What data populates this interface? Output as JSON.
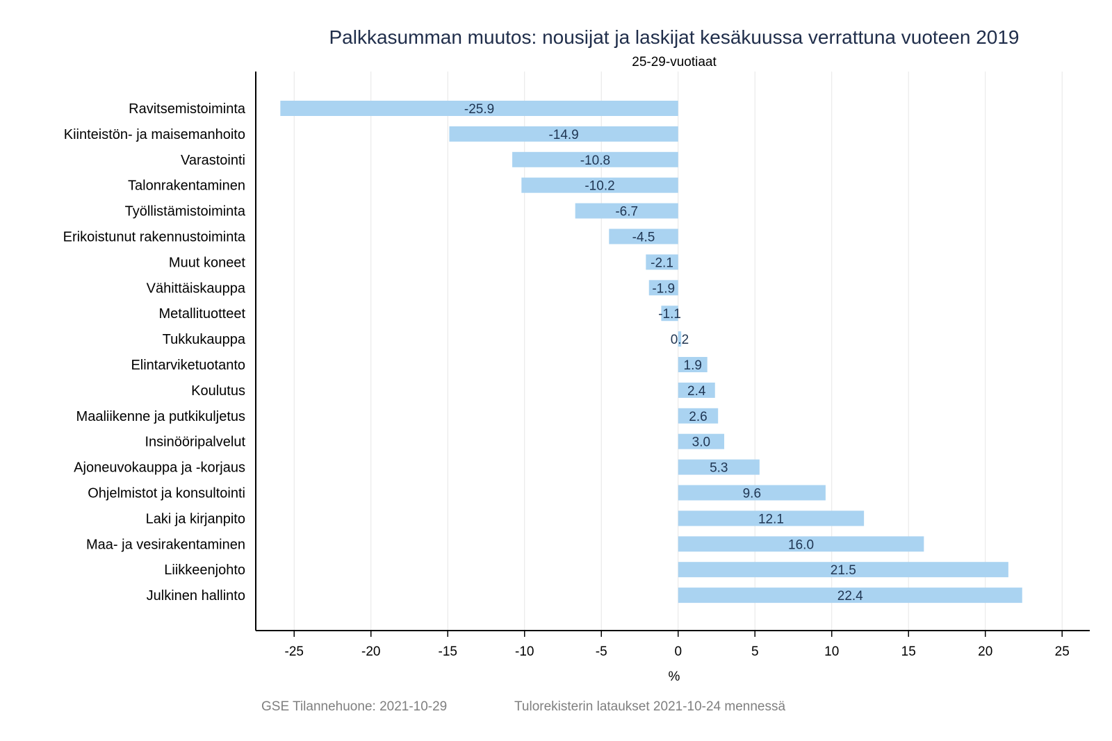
{
  "chart_data": {
    "type": "bar",
    "orientation": "horizontal",
    "title": "Palkkasumman muutos: nousijat ja laskijat kesäkuussa verrattuna vuoteen 2019",
    "subtitle": "25-29-vuotiaat",
    "xlabel": "%",
    "ylabel": "",
    "xlim": [
      -27.5,
      26.8
    ],
    "xticks": [
      "-25",
      "-20",
      "-15",
      "-10",
      "-5",
      "0",
      "5",
      "10",
      "15",
      "20",
      "25"
    ],
    "xtick_values": [
      -25,
      -20,
      -15,
      -10,
      -5,
      0,
      5,
      10,
      15,
      20,
      25
    ],
    "grid": true,
    "bar_color": "#aad3f1",
    "categories": [
      "Ravitsemistoiminta",
      "Kiinteistön- ja maisemanhoito",
      "Varastointi",
      "Talonrakentaminen",
      "Työllistämistoiminta",
      "Erikoistunut rakennustoiminta",
      "Muut koneet",
      "Vähittäiskauppa",
      "Metallituotteet",
      "Tukkukauppa",
      "Elintarviketuotanto",
      "Koulutus",
      "Maaliikenne ja putkikuljetus",
      "Insinööripalvelut",
      "Ajoneuvokauppa ja -korjaus",
      "Ohjelmistot ja konsultointi",
      "Laki ja kirjanpito",
      "Maa- ja vesirakentaminen",
      "Liikkeenjohto",
      "Julkinen hallinto"
    ],
    "values": [
      -25.9,
      -14.9,
      -10.8,
      -10.2,
      -6.7,
      -4.5,
      -2.1,
      -1.9,
      -1.1,
      0.2,
      1.9,
      2.4,
      2.6,
      3.0,
      5.3,
      9.6,
      12.1,
      16.0,
      21.5,
      22.4
    ],
    "value_labels": [
      "-25.9",
      "-14.9",
      "-10.8",
      "-10.2",
      "-6.7",
      "-4.5",
      "-2.1",
      "-1.9",
      "-1.1",
      "0.2",
      "1.9",
      "2.4",
      "2.6",
      "3.0",
      "5.3",
      "9.6",
      "12.1",
      "16.0",
      "21.5",
      "22.4"
    ]
  },
  "footer": {
    "source": "GSE Tilannehuone: 2021-10-29",
    "note": "Tulorekisterin lataukset 2021-10-24 mennessä"
  }
}
